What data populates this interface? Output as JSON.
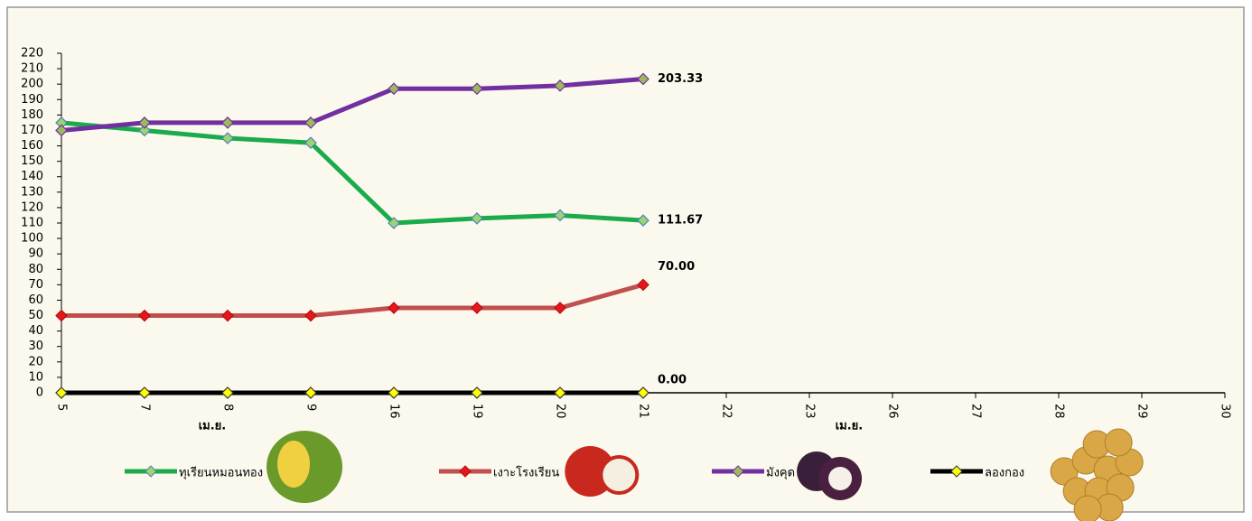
{
  "chart_data": {
    "type": "line",
    "categories": [
      "5",
      "7",
      "8",
      "9",
      "16",
      "19",
      "20",
      "21",
      "22",
      "23",
      "26",
      "27",
      "28",
      "29",
      "30"
    ],
    "x_group_labels": [
      "เม.ย.",
      "เม.ย."
    ],
    "series": [
      {
        "name": "ทุเรียนหมอนทอง",
        "color": "#1aab4a",
        "marker_fill": "#9bd56b",
        "marker_stroke": "#4f81bd",
        "values": [
          175,
          170,
          165,
          162,
          110,
          113,
          115,
          111.67,
          null,
          null,
          null,
          null,
          null,
          null,
          null
        ],
        "value_labels": [
          null,
          null,
          null,
          null,
          null,
          null,
          null,
          "111.67",
          null,
          null,
          null,
          null,
          null,
          null,
          null
        ]
      },
      {
        "name": "เงาะโรงเรียน",
        "color": "#c0504d",
        "marker_fill": "#e8161b",
        "marker_stroke": "#b01010",
        "label_color": "#ff0000",
        "values": [
          50,
          50,
          50,
          50,
          55,
          55,
          55,
          70,
          null,
          null,
          null,
          null,
          null,
          null,
          null
        ],
        "value_labels": [
          null,
          null,
          null,
          null,
          null,
          null,
          null,
          "70.00",
          null,
          null,
          null,
          null,
          null,
          null,
          null
        ]
      },
      {
        "name": "มังคุด",
        "color": "#7030a0",
        "marker_fill": "#9bbb59",
        "marker_stroke": "#7030a0",
        "values": [
          170,
          175,
          175,
          175,
          197,
          197,
          199,
          203.33,
          null,
          null,
          null,
          null,
          null,
          null,
          null
        ],
        "value_labels": [
          null,
          null,
          null,
          null,
          null,
          null,
          null,
          "203.33",
          null,
          null,
          null,
          null,
          null,
          null,
          null
        ]
      },
      {
        "name": "ลองกอง",
        "color": "#000000",
        "marker_fill": "#ffff00",
        "marker_stroke": "#333333",
        "values": [
          0,
          0,
          0,
          0,
          0,
          0,
          0,
          0,
          null,
          null,
          null,
          null,
          null,
          null,
          null
        ],
        "value_labels": [
          null,
          null,
          null,
          null,
          null,
          null,
          null,
          "0.00",
          null,
          null,
          null,
          null,
          null,
          null,
          null
        ]
      }
    ],
    "ylim": [
      0,
      220
    ],
    "yticks": [
      0,
      10,
      20,
      30,
      40,
      50,
      60,
      70,
      80,
      90,
      100,
      110,
      120,
      130,
      140,
      150,
      160,
      170,
      180,
      190,
      200,
      210,
      220
    ],
    "legend": "bottom"
  }
}
